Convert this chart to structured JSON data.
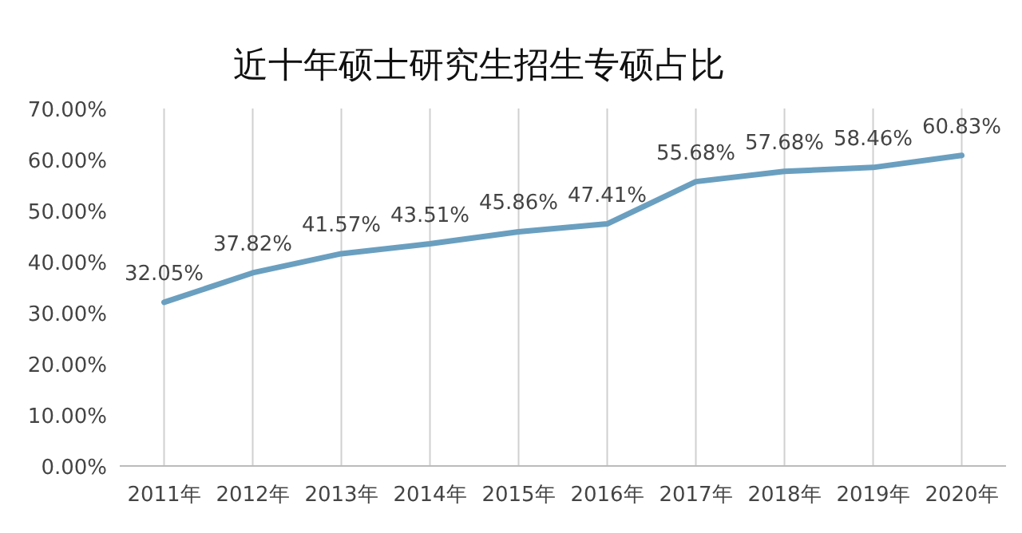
{
  "chart_data": {
    "type": "line",
    "title": "近十年硕士研究生招生专硕占比",
    "categories": [
      "2011年",
      "2012年",
      "2013年",
      "2014年",
      "2015年",
      "2016年",
      "2017年",
      "2018年",
      "2019年",
      "2020年"
    ],
    "series": [
      {
        "color": "#6a9fc0",
        "values": [
          32.05,
          37.82,
          41.57,
          43.51,
          45.86,
          47.41,
          55.68,
          57.68,
          58.46,
          60.83
        ],
        "value_labels": [
          "32.05%",
          "37.82%",
          "41.57%",
          "43.51%",
          "45.86%",
          "47.41%",
          "55.68%",
          "57.68%",
          "58.46%",
          "60.83%"
        ]
      }
    ],
    "ylim": [
      0,
      70
    ],
    "yticks": [
      {
        "value": 0,
        "label": "0.00%"
      },
      {
        "value": 10,
        "label": "10.00%"
      },
      {
        "value": 20,
        "label": "20.00%"
      },
      {
        "value": 30,
        "label": "30.00%"
      },
      {
        "value": 40,
        "label": "40.00%"
      },
      {
        "value": 50,
        "label": "50.00%"
      },
      {
        "value": 60,
        "label": "60.00%"
      },
      {
        "value": 70,
        "label": "70.00%"
      }
    ],
    "grid": "x",
    "marker": "none",
    "line_style": "solid"
  }
}
